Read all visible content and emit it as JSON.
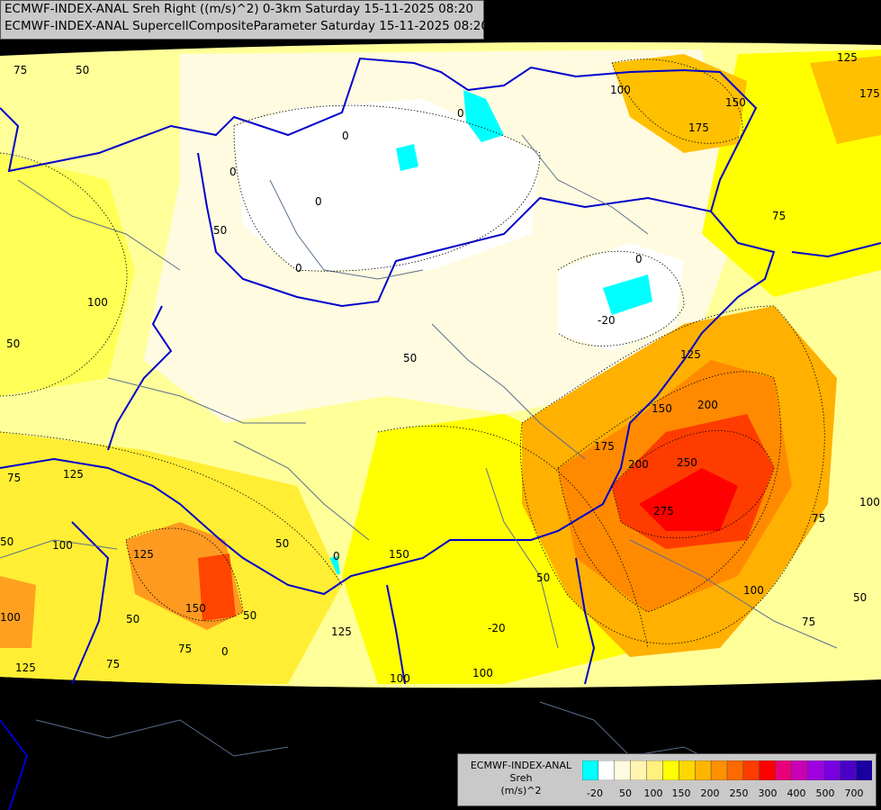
{
  "header": {
    "line1": "ECMWF-INDEX-ANAL Sreh Right ((m/s)^2) 0-3km Saturday 15-11-2025 08:20",
    "line2": "ECMWF-INDEX-ANAL SupercellCompositeParameter Saturday 15-11-2025 08:20"
  },
  "legend": {
    "line1": "ECMWF-INDEX-ANAL",
    "line2": "Sreh",
    "line3": "(m/s)^2",
    "ticks": [
      "-20",
      "50",
      "100",
      "150",
      "200",
      "250",
      "300",
      "400",
      "500",
      "700"
    ],
    "colors": [
      "#00ffff",
      "#ffffff",
      "#fffbe0",
      "#fff5b0",
      "#fff080",
      "#ffff00",
      "#ffd700",
      "#ffb400",
      "#ff9000",
      "#ff6a00",
      "#ff3c00",
      "#ff0000",
      "#e8007a",
      "#c800b4",
      "#a000e0",
      "#7800e0",
      "#4a00c8",
      "#1a00a0"
    ]
  },
  "contour_labels": [
    "75",
    "50",
    "125",
    "100",
    "175",
    "150",
    "175",
    "75",
    "0",
    "0",
    "0",
    "0",
    "50",
    "0",
    "100",
    "50",
    "-20",
    "0",
    "50",
    "125",
    "125",
    "150",
    "200",
    "250",
    "175",
    "275",
    "200",
    "100",
    "75",
    "50",
    "75",
    "75",
    "50",
    "100",
    "150",
    "50",
    "0",
    "125",
    "100",
    "75",
    "50",
    "0",
    "125",
    "100",
    "50",
    "125",
    "75",
    "100",
    "100",
    "150",
    "50",
    "-20"
  ],
  "colors": {
    "yellow": "#ffff00",
    "orange": "#ffb400",
    "red": "#ff3c00",
    "border": "#0000cc",
    "river": "#5b6f8f"
  }
}
